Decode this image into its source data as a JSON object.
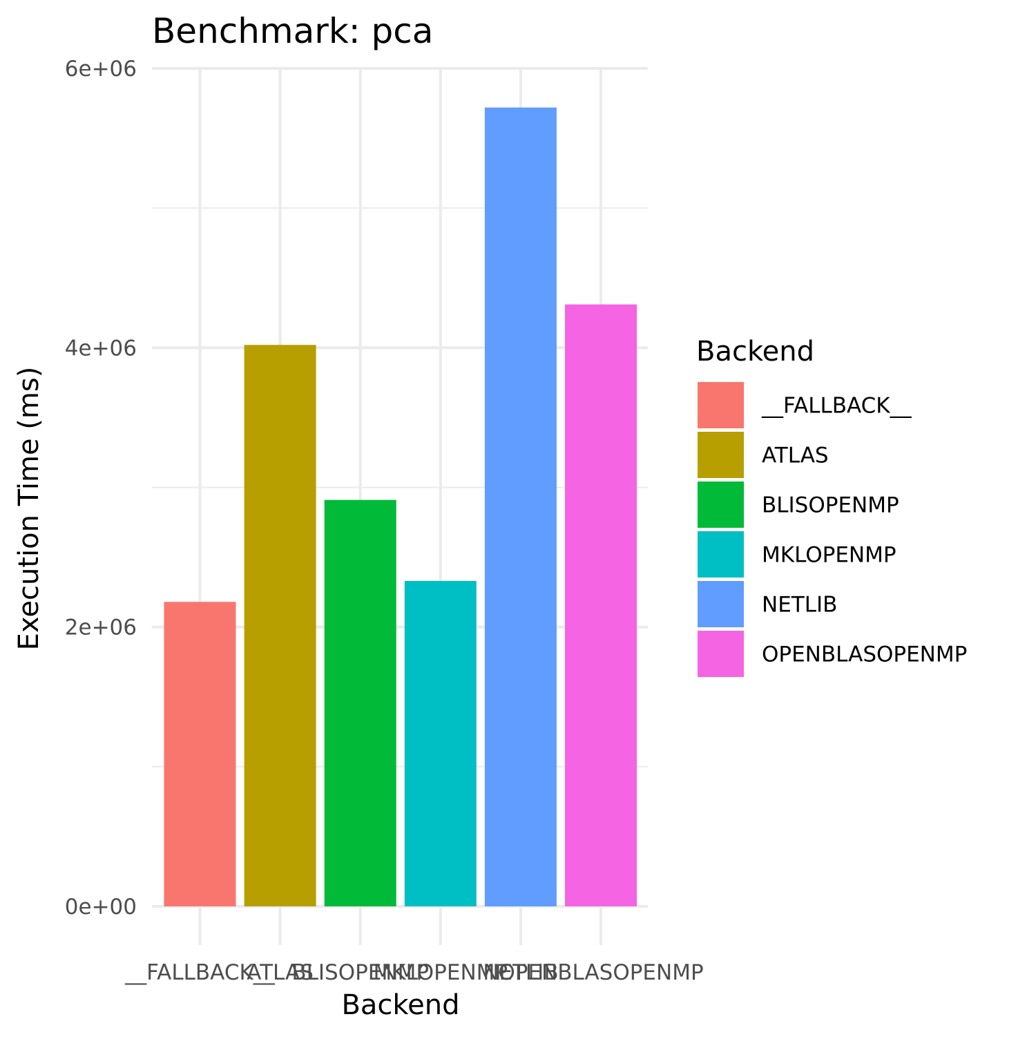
{
  "chart_data": {
    "type": "bar",
    "title": "Benchmark: pca",
    "xlabel": "Backend",
    "ylabel": "Execution Time (ms)",
    "categories": [
      "__FALLBACK__",
      "ATLAS",
      "BLISOPENMP",
      "MKLOPENMP",
      "NETLIB",
      "OPENBLASOPENMP"
    ],
    "values": [
      2180000,
      4020000,
      2910000,
      2330000,
      5720000,
      4310000
    ],
    "colors": [
      "#F8766D",
      "#B79F00",
      "#00BA38",
      "#00BFC4",
      "#619CFF",
      "#F564E3"
    ],
    "ylim": [
      0,
      6000000
    ],
    "y_major_ticks": [
      0,
      2000000,
      4000000,
      6000000
    ],
    "y_tick_labels": [
      "0e+00",
      "2e+06",
      "4e+06",
      "6e+06"
    ],
    "y_minor_ticks": [
      1000000,
      3000000,
      5000000
    ],
    "grid": true,
    "legend": {
      "title": "Backend",
      "position": "right",
      "entries": [
        "__FALLBACK__",
        "ATLAS",
        "BLISOPENMP",
        "MKLOPENMP",
        "NETLIB",
        "OPENBLASOPENMP"
      ]
    }
  }
}
